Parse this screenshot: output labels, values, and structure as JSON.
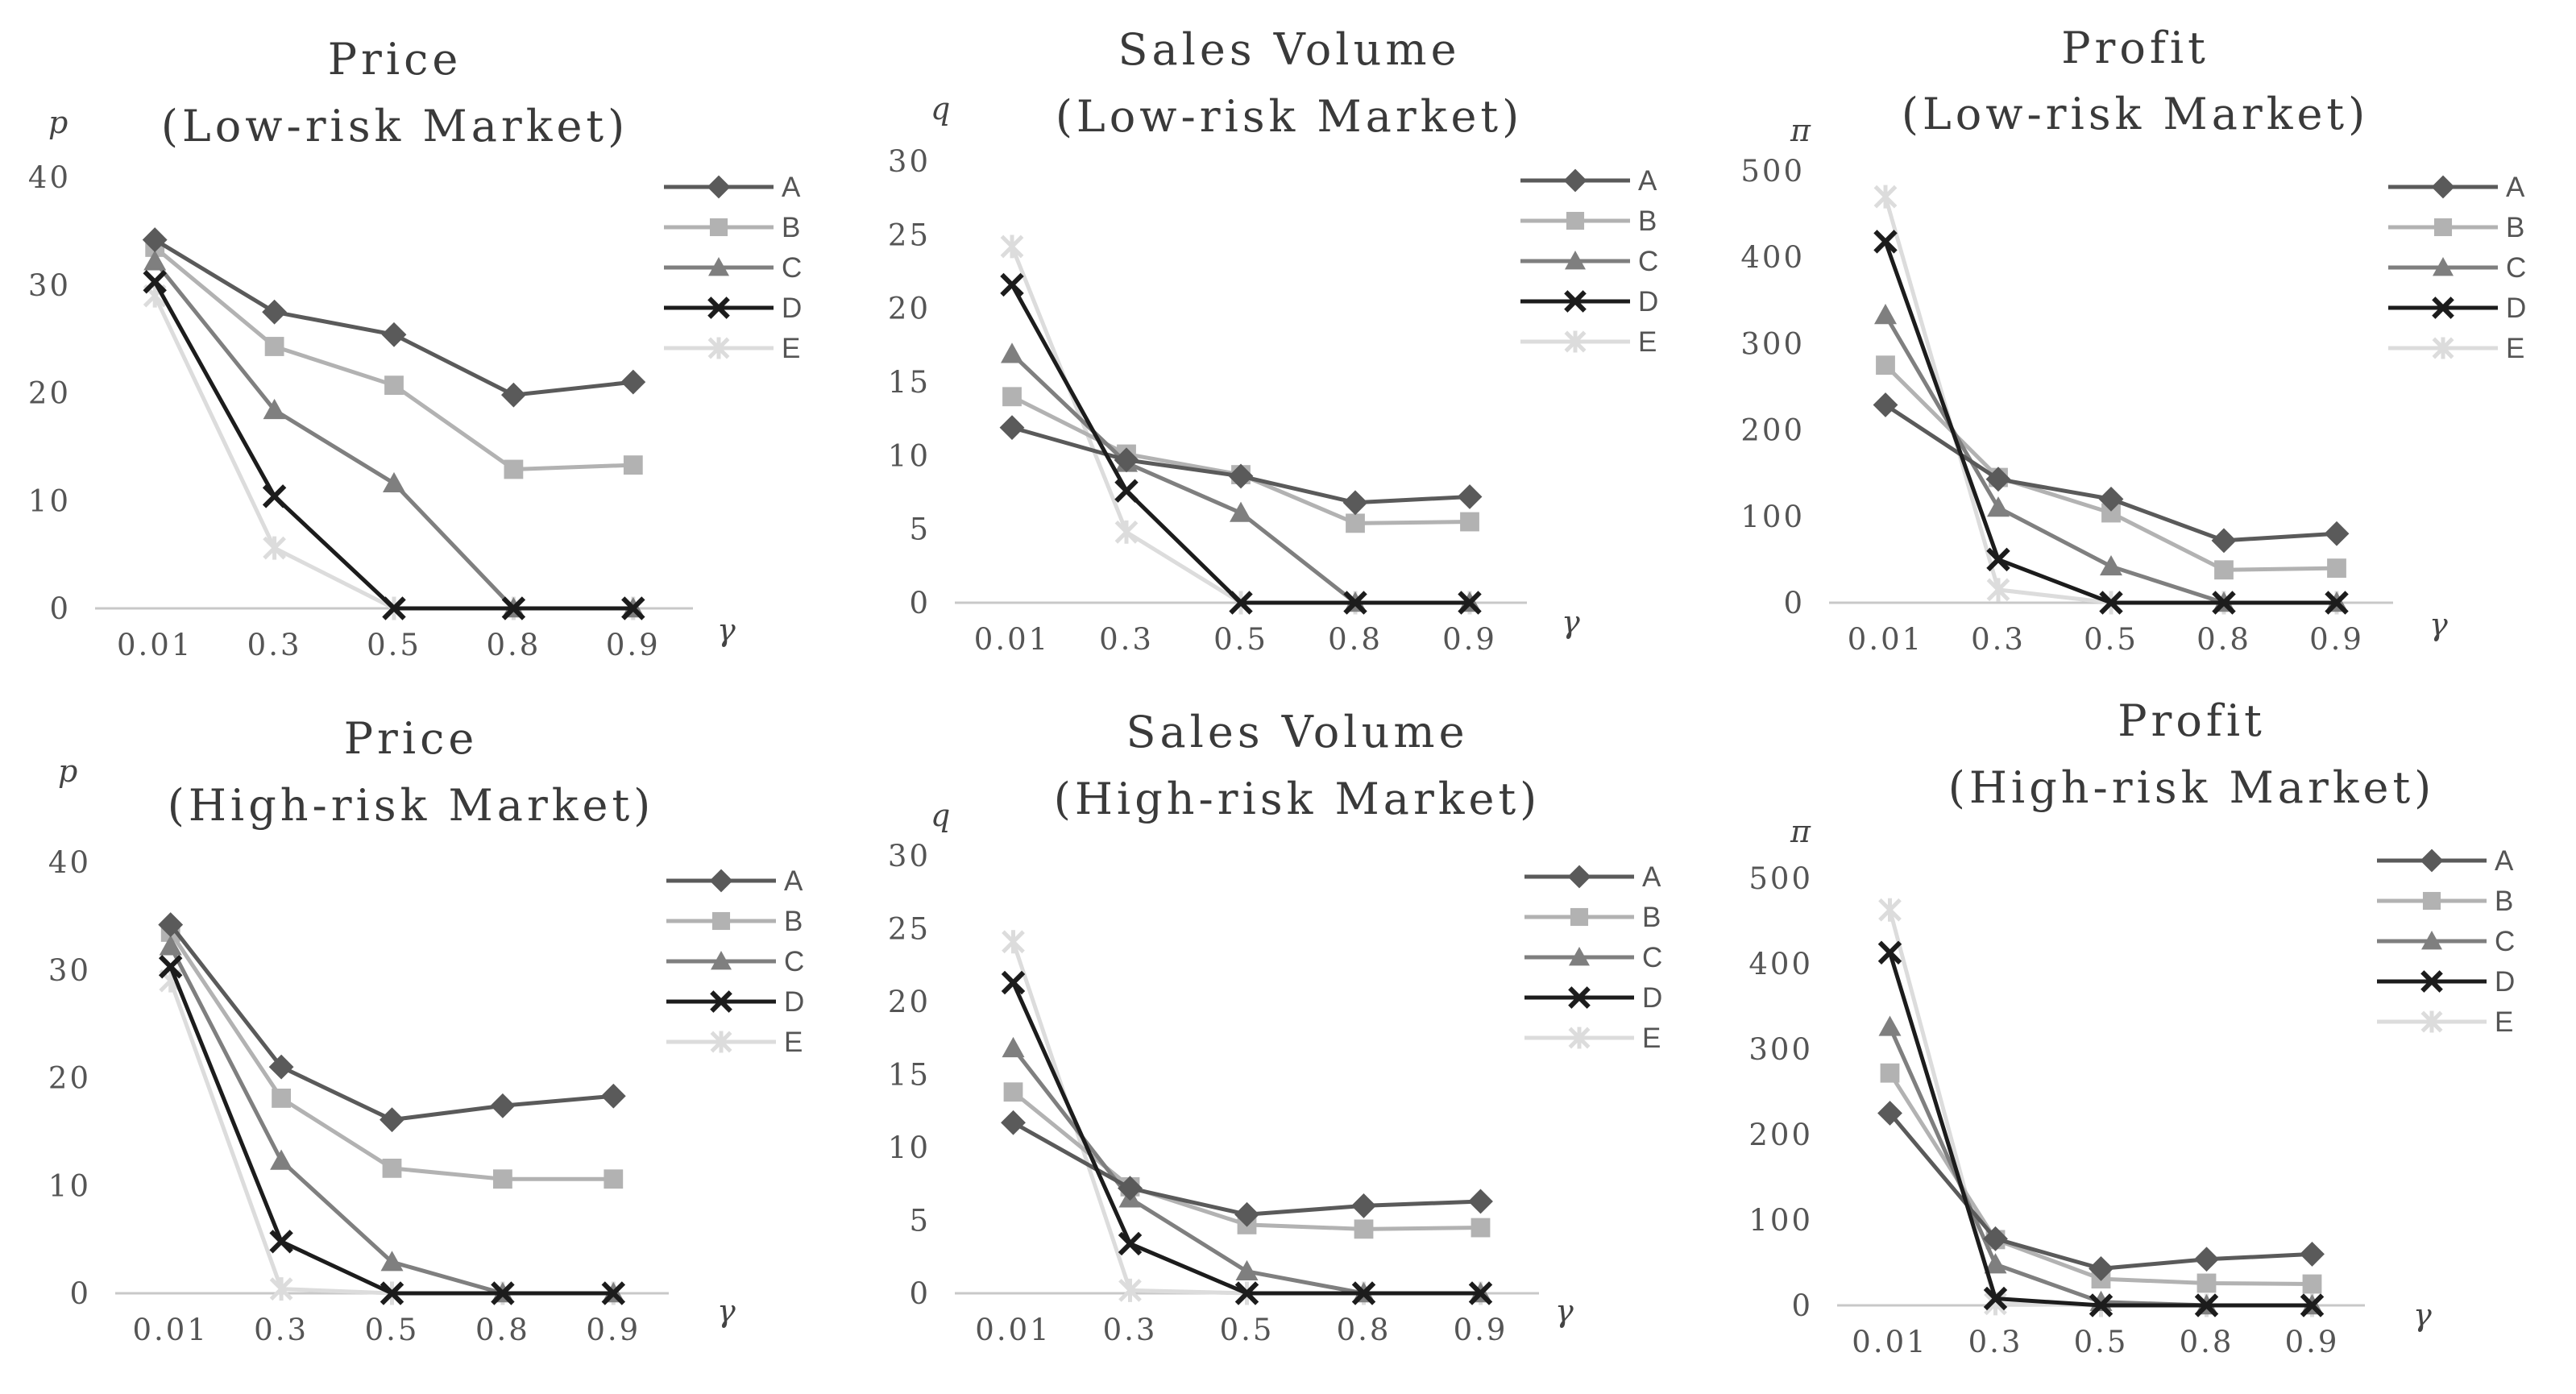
{
  "chart_data": [
    {
      "type": "line",
      "title_lines": [
        "Price",
        "(Low-risk Market)"
      ],
      "ylabel": "p",
      "xlabel": "γ",
      "x": [
        "0.01",
        "0.3",
        "0.5",
        "0.8",
        "0.9"
      ],
      "ylim": [
        0,
        40
      ],
      "yticks": [
        "0",
        "10",
        "20",
        "30",
        "40"
      ],
      "legend_position": "right",
      "series": [
        {
          "name": "A",
          "values": [
            34.2,
            27.5,
            25.4,
            19.8,
            21.0
          ]
        },
        {
          "name": "B",
          "values": [
            33.5,
            24.3,
            20.7,
            12.9,
            13.3
          ]
        },
        {
          "name": "C",
          "values": [
            32.2,
            18.4,
            11.6,
            0,
            0
          ]
        },
        {
          "name": "D",
          "values": [
            30.3,
            10.4,
            0,
            0,
            0
          ]
        },
        {
          "name": "E",
          "values": [
            29.0,
            5.6,
            0,
            0,
            0
          ]
        }
      ]
    },
    {
      "type": "line",
      "title_lines": [
        "Sales Volume",
        "(Low-risk Market)"
      ],
      "ylabel": "q",
      "xlabel": "γ",
      "x": [
        "0.01",
        "0.3",
        "0.5",
        "0.8",
        "0.9"
      ],
      "ylim": [
        0,
        30
      ],
      "yticks": [
        "0",
        "5",
        "10",
        "15",
        "20",
        "25",
        "30"
      ],
      "legend_position": "right",
      "series": [
        {
          "name": "A",
          "values": [
            11.9,
            9.7,
            8.6,
            6.8,
            7.2
          ]
        },
        {
          "name": "B",
          "values": [
            14.0,
            10.1,
            8.7,
            5.4,
            5.5
          ]
        },
        {
          "name": "C",
          "values": [
            16.9,
            9.5,
            6.1,
            0,
            0
          ]
        },
        {
          "name": "D",
          "values": [
            21.6,
            7.6,
            0,
            0,
            0
          ]
        },
        {
          "name": "E",
          "values": [
            24.2,
            4.8,
            0,
            0,
            0
          ]
        }
      ]
    },
    {
      "type": "line",
      "title_lines": [
        "Profit",
        "(Low-risk Market)"
      ],
      "ylabel": "π",
      "xlabel": "γ",
      "x": [
        "0.01",
        "0.3",
        "0.5",
        "0.8",
        "0.9"
      ],
      "ylim": [
        0,
        500
      ],
      "yticks": [
        "0",
        "100",
        "200",
        "300",
        "400",
        "500"
      ],
      "legend_position": "right",
      "series": [
        {
          "name": "A",
          "values": [
            229,
            143,
            120,
            72,
            80
          ]
        },
        {
          "name": "B",
          "values": [
            275,
            145,
            104,
            38,
            40
          ]
        },
        {
          "name": "C",
          "values": [
            333,
            110,
            42,
            0,
            0
          ]
        },
        {
          "name": "D",
          "values": [
            418,
            50,
            0,
            0,
            0
          ]
        },
        {
          "name": "E",
          "values": [
            470,
            15,
            0,
            0,
            0
          ]
        }
      ]
    },
    {
      "type": "line",
      "title_lines": [
        "Price",
        "(High-risk Market)"
      ],
      "ylabel": "p",
      "xlabel": "γ",
      "x": [
        "0.01",
        "0.3",
        "0.5",
        "0.8",
        "0.9"
      ],
      "ylim": [
        0,
        40
      ],
      "yticks": [
        "0",
        "10",
        "20",
        "30",
        "40"
      ],
      "legend_position": "right",
      "series": [
        {
          "name": "A",
          "values": [
            34.2,
            21.0,
            16.1,
            17.4,
            18.3
          ]
        },
        {
          "name": "B",
          "values": [
            33.5,
            18.1,
            11.6,
            10.6,
            10.6
          ]
        },
        {
          "name": "C",
          "values": [
            32.2,
            12.3,
            2.9,
            0,
            0
          ]
        },
        {
          "name": "D",
          "values": [
            30.3,
            4.8,
            0,
            0,
            0
          ]
        },
        {
          "name": "E",
          "values": [
            29.0,
            0.4,
            0,
            0,
            0
          ]
        }
      ]
    },
    {
      "type": "line",
      "title_lines": [
        "Sales Volume",
        "(High-risk Market)"
      ],
      "ylabel": "q",
      "xlabel": "γ",
      "x": [
        "0.01",
        "0.3",
        "0.5",
        "0.8",
        "0.9"
      ],
      "ylim": [
        0,
        30
      ],
      "yticks": [
        "0",
        "5",
        "10",
        "15",
        "20",
        "25",
        "30"
      ],
      "legend_position": "right",
      "series": [
        {
          "name": "A",
          "values": [
            11.7,
            7.2,
            5.4,
            6.0,
            6.3
          ]
        },
        {
          "name": "B",
          "values": [
            13.8,
            7.3,
            4.7,
            4.4,
            4.5
          ]
        },
        {
          "name": "C",
          "values": [
            16.8,
            6.5,
            1.5,
            0,
            0
          ]
        },
        {
          "name": "D",
          "values": [
            21.3,
            3.4,
            0,
            0,
            0
          ]
        },
        {
          "name": "E",
          "values": [
            24.1,
            0.2,
            0,
            0,
            0
          ]
        }
      ]
    },
    {
      "type": "line",
      "title_lines": [
        "Profit",
        "(High-risk Market)"
      ],
      "ylabel": "π",
      "xlabel": "γ",
      "x": [
        "0.01",
        "0.3",
        "0.5",
        "0.8",
        "0.9"
      ],
      "ylim": [
        0,
        500
      ],
      "yticks": [
        "0",
        "100",
        "200",
        "300",
        "400",
        "500"
      ],
      "legend_position": "right",
      "series": [
        {
          "name": "A",
          "values": [
            225,
            78,
            43,
            54,
            60
          ]
        },
        {
          "name": "B",
          "values": [
            272,
            77,
            31,
            26,
            25
          ]
        },
        {
          "name": "C",
          "values": [
            326,
            48,
            4,
            0,
            0
          ]
        },
        {
          "name": "D",
          "values": [
            413,
            8,
            0,
            0,
            0
          ]
        },
        {
          "name": "E",
          "values": [
            463,
            2,
            0,
            0,
            0
          ]
        }
      ]
    }
  ],
  "series_style": {
    "A": {
      "color": "#5a5a5a",
      "marker": "diamond-icon"
    },
    "B": {
      "color": "#b2b2b2",
      "marker": "square-icon"
    },
    "C": {
      "color": "#7f7f7f",
      "marker": "triangle-icon"
    },
    "D": {
      "color": "#1c1c1c",
      "marker": "cross-icon"
    },
    "E": {
      "color": "#dcdcdc",
      "marker": "asterisk-icon"
    }
  }
}
